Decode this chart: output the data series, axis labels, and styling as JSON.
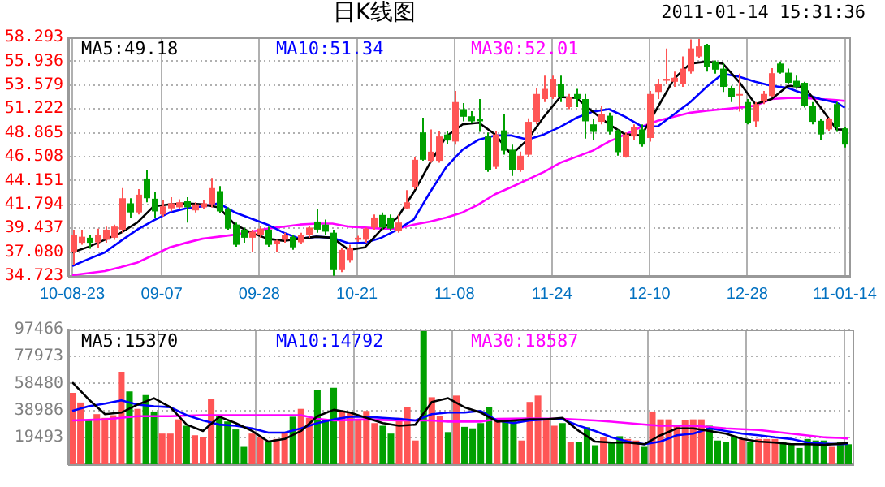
{
  "chart_data": [
    {
      "type": "candlestick",
      "title": "日K线图",
      "annotations": [
        "2011-01-14 15:31:36"
      ],
      "categories": [
        "10-08-23",
        null,
        null,
        null,
        null,
        null,
        null,
        null,
        null,
        null,
        null,
        "09-07",
        null,
        null,
        null,
        null,
        null,
        null,
        null,
        null,
        null,
        null,
        null,
        "09-28",
        null,
        null,
        null,
        null,
        null,
        null,
        null,
        null,
        null,
        null,
        null,
        "10-21",
        null,
        null,
        null,
        null,
        null,
        null,
        null,
        null,
        null,
        null,
        null,
        "11-08",
        null,
        null,
        null,
        null,
        null,
        null,
        null,
        null,
        null,
        null,
        null,
        "11-24",
        null,
        null,
        null,
        null,
        null,
        null,
        null,
        null,
        null,
        null,
        null,
        "12-10",
        null,
        null,
        null,
        null,
        null,
        null,
        null,
        null,
        null,
        null,
        null,
        "12-28",
        null,
        null,
        null,
        null,
        null,
        null,
        null,
        null,
        null,
        null,
        null,
        "11-01-14"
      ],
      "ohlc": [
        [
          37.05,
          39.3,
          35.8,
          38.8
        ],
        [
          38.0,
          39.3,
          37.8,
          38.6
        ],
        [
          38.5,
          38.8,
          37.4,
          38.0
        ],
        [
          38.05,
          39.4,
          37.5,
          38.8
        ],
        [
          38.3,
          39.6,
          38.0,
          39.3
        ],
        [
          38.5,
          39.8,
          38.3,
          39.6
        ],
        [
          39.3,
          43.4,
          39.0,
          42.4
        ],
        [
          41.9,
          42.4,
          40.5,
          41.0
        ],
        [
          41.0,
          43.3,
          40.8,
          42.75
        ],
        [
          44.35,
          45.2,
          42.0,
          42.4
        ],
        [
          42.35,
          43.0,
          40.5,
          41.1
        ],
        [
          40.8,
          42.2,
          40.6,
          41.6
        ],
        [
          41.4,
          42.5,
          41.1,
          41.9
        ],
        [
          41.5,
          42.3,
          41.3,
          42.0
        ],
        [
          42.1,
          42.5,
          40.0,
          41.5
        ],
        [
          41.2,
          42.0,
          41.0,
          41.8
        ],
        [
          41.5,
          42.2,
          41.3,
          41.9
        ],
        [
          41.8,
          44.4,
          41.5,
          43.4
        ],
        [
          43.1,
          43.6,
          40.9,
          41.1
        ],
        [
          41.3,
          41.5,
          39.3,
          39.4
        ],
        [
          39.8,
          40.0,
          37.6,
          37.8
        ],
        [
          39.3,
          39.5,
          38.0,
          38.5
        ],
        [
          38.5,
          39.3,
          37.05,
          39.1
        ],
        [
          38.8,
          39.7,
          38.5,
          39.4
        ],
        [
          39.3,
          39.6,
          37.6,
          37.8
        ],
        [
          37.9,
          38.3,
          37.1,
          38.2
        ],
        [
          38.3,
          39.0,
          38.0,
          38.8
        ],
        [
          38.6,
          38.8,
          37.3,
          37.55
        ],
        [
          38.05,
          39.0,
          37.9,
          38.8
        ],
        [
          38.8,
          39.7,
          38.5,
          39.5
        ],
        [
          40.1,
          41.3,
          39.0,
          39.3
        ],
        [
          39.8,
          40.3,
          38.8,
          39.1
        ],
        [
          39.0,
          39.3,
          34.75,
          35.3
        ],
        [
          35.3,
          37.5,
          35.1,
          37.3
        ],
        [
          36.3,
          37.8,
          36.05,
          37.5
        ],
        [
          38.3,
          38.7,
          38.1,
          38.5
        ],
        [
          38.3,
          39.5,
          38.0,
          39.4
        ],
        [
          39.5,
          40.8,
          39.3,
          40.5
        ],
        [
          40.75,
          41.0,
          39.3,
          39.5
        ],
        [
          40.5,
          40.8,
          39.2,
          39.4
        ],
        [
          39.2,
          40.8,
          39.0,
          40.0
        ],
        [
          41.4,
          43.2,
          41.3,
          42.0
        ],
        [
          43.5,
          46.5,
          43.3,
          46.2
        ],
        [
          48.9,
          50.35,
          46.1,
          46.2
        ],
        [
          46.1,
          49.2,
          45.9,
          47.0
        ],
        [
          46.1,
          49.0,
          45.9,
          48.5
        ],
        [
          48.7,
          49.0,
          47.8,
          48.1
        ],
        [
          48.0,
          53.0,
          47.7,
          51.9
        ],
        [
          51.2,
          51.8,
          50.0,
          50.45
        ],
        [
          50.5,
          51.0,
          49.8,
          50.0
        ],
        [
          50.2,
          52.2,
          48.95,
          50.0
        ],
        [
          48.5,
          48.9,
          45.0,
          45.2
        ],
        [
          45.5,
          49.0,
          45.3,
          48.7
        ],
        [
          49.1,
          50.7,
          46.7,
          47.1
        ],
        [
          47.2,
          47.7,
          44.6,
          45.2
        ],
        [
          45.2,
          47.0,
          45.0,
          46.6
        ],
        [
          46.7,
          50.3,
          46.5,
          49.95
        ],
        [
          49.95,
          53.3,
          49.7,
          52.7
        ],
        [
          52.2,
          54.5,
          51.9,
          53.2
        ],
        [
          52.4,
          54.5,
          52.2,
          54.2
        ],
        [
          53.7,
          54.5,
          51.9,
          52.4
        ],
        [
          51.4,
          52.7,
          51.2,
          52.4
        ],
        [
          52.7,
          53.2,
          51.4,
          52.2
        ],
        [
          52.2,
          52.7,
          48.3,
          50.0
        ],
        [
          49.7,
          50.2,
          48.2,
          48.95
        ],
        [
          49.95,
          51.5,
          49.7,
          50.7
        ],
        [
          50.55,
          50.85,
          48.7,
          48.95
        ],
        [
          49.1,
          49.2,
          46.6,
          46.95
        ],
        [
          46.5,
          48.9,
          46.4,
          48.7
        ],
        [
          48.5,
          49.7,
          48.2,
          49.45
        ],
        [
          49.2,
          49.7,
          47.5,
          47.7
        ],
        [
          48.35,
          53.0,
          48.0,
          52.7
        ],
        [
          52.9,
          54.2,
          52.2,
          53.7
        ],
        [
          54.0,
          57.2,
          53.7,
          54.2
        ],
        [
          53.9,
          54.9,
          53.4,
          54.3
        ],
        [
          53.7,
          56.4,
          53.4,
          55.2
        ],
        [
          54.9,
          58.1,
          54.7,
          57.2
        ],
        [
          56.4,
          58.29,
          56.2,
          57.4
        ],
        [
          57.5,
          57.65,
          54.9,
          55.4
        ],
        [
          55.9,
          56.0,
          54.7,
          55.1
        ],
        [
          55.2,
          55.7,
          52.9,
          53.4
        ],
        [
          53.3,
          53.5,
          51.9,
          52.4
        ],
        [
          52.6,
          54.7,
          50.95,
          52.7
        ],
        [
          51.9,
          52.2,
          49.7,
          49.85
        ],
        [
          50.0,
          51.9,
          49.45,
          51.7
        ],
        [
          52.0,
          53.0,
          51.7,
          52.7
        ],
        [
          52.5,
          55.25,
          52.4,
          54.75
        ],
        [
          55.7,
          55.9,
          54.7,
          54.8
        ],
        [
          54.8,
          55.2,
          53.7,
          53.8
        ],
        [
          54.0,
          54.5,
          53.2,
          53.4
        ],
        [
          53.8,
          53.9,
          51.35,
          51.5
        ],
        [
          51.5,
          51.9,
          49.7,
          49.95
        ],
        [
          50.05,
          50.2,
          48.15,
          48.7
        ],
        [
          49.2,
          50.35,
          49.0,
          50.2
        ],
        [
          51.7,
          51.9,
          48.95,
          49.45
        ],
        [
          49.3,
          49.45,
          47.4,
          47.7
        ]
      ],
      "colors": [
        "#ff5555",
        "#ff5555",
        "#00a000",
        "#ff5555",
        "#ff5555",
        "#ff5555",
        "#ff5555",
        "#00a000",
        "#ff5555",
        "#00a000",
        "#00a000",
        "#ff5555",
        "#ff5555",
        "#ff5555",
        "#00a000",
        "#ff5555",
        "#ff5555",
        "#ff5555",
        "#00a000",
        "#00a000",
        "#00a000",
        "#00a000",
        "#ff5555",
        "#ff5555",
        "#00a000",
        "#ff5555",
        "#ff5555",
        "#00a000",
        "#ff5555",
        "#ff5555",
        "#00a000",
        "#00a000",
        "#00a000",
        "#ff5555",
        "#ff5555",
        "#ff5555",
        "#ff5555",
        "#ff5555",
        "#00a000",
        "#00a000",
        "#ff5555",
        "#ff5555",
        "#ff5555",
        "#00a000",
        "#ff5555",
        "#ff5555",
        "#00a000",
        "#ff5555",
        "#00a000",
        "#00a000",
        "#00a000",
        "#00a000",
        "#ff5555",
        "#00a000",
        "#00a000",
        "#ff5555",
        "#ff5555",
        "#ff5555",
        "#ff5555",
        "#ff5555",
        "#00a000",
        "#ff5555",
        "#00a000",
        "#00a000",
        "#00a000",
        "#ff5555",
        "#00a000",
        "#00a000",
        "#ff5555",
        "#ff5555",
        "#00a000",
        "#ff5555",
        "#ff5555",
        "#ff5555",
        "#ff5555",
        "#ff5555",
        "#ff5555",
        "#ff5555",
        "#00a000",
        "#00a000",
        "#00a000",
        "#00a000",
        "#ff5555",
        "#00a000",
        "#ff5555",
        "#ff5555",
        "#ff5555",
        "#00a000",
        "#00a000",
        "#00a000",
        "#00a000",
        "#00a000",
        "#00a000",
        "#ff5555",
        "#00a000",
        "#00a000"
      ],
      "series": [
        {
          "type": "line",
          "name": "MA5:49.18",
          "color": "#000000",
          "values": [
            37.05,
            null,
            37.6,
            null,
            38.3,
            null,
            39.0,
            null,
            40.0,
            null,
            41.6,
            null,
            41.8,
            null,
            41.9,
            null,
            41.8,
            null,
            41.5,
            null,
            39.8,
            null,
            39.0,
            null,
            38.4,
            null,
            38.2,
            null,
            38.4,
            null,
            38.6,
            null,
            38.5,
            null,
            37.3,
            null,
            37.55,
            null,
            39.3,
            null,
            40.5,
            null,
            43.0,
            null,
            45.9,
            null,
            48.5,
            null,
            49.7,
            null,
            49.85,
            null,
            48.7,
            null,
            46.7,
            null,
            48.2,
            null,
            50.45,
            null,
            52.4,
            null,
            52.3,
            null,
            50.95,
            null,
            49.7,
            null,
            48.7,
            null,
            48.6,
            null,
            51.4,
            null,
            54.2,
            null,
            55.7,
            null,
            55.9,
            null,
            55.7,
            null,
            53.9,
            null,
            51.7,
            null,
            52.2,
            null,
            53.5,
            null,
            53.4,
            null,
            51.4,
            null,
            49.2,
            49.18
          ]
        },
        {
          "type": "line",
          "name": "MA10:51.34",
          "color": "#0000ff",
          "values": [
            35.7,
            null,
            36.4,
            null,
            37.05,
            null,
            38.2,
            null,
            39.3,
            null,
            40.2,
            null,
            41.0,
            null,
            41.4,
            null,
            41.6,
            null,
            41.9,
            null,
            41.0,
            null,
            40.4,
            null,
            39.8,
            null,
            39.0,
            null,
            38.4,
            null,
            38.6,
            null,
            38.5,
            null,
            37.95,
            null,
            38.0,
            null,
            38.5,
            null,
            39.3,
            null,
            40.3,
            null,
            43.0,
            null,
            45.5,
            null,
            47.2,
            null,
            48.2,
            null,
            48.6,
            null,
            48.6,
            null,
            48.2,
            null,
            48.7,
            null,
            49.45,
            null,
            50.35,
            null,
            50.95,
            null,
            51.2,
            null,
            50.45,
            null,
            49.5,
            null,
            49.5,
            null,
            50.7,
            null,
            51.9,
            null,
            53.4,
            null,
            54.7,
            null,
            54.4,
            null,
            53.9,
            null,
            53.5,
            null,
            53.3,
            null,
            52.7,
            null,
            52.2,
            null,
            51.85,
            51.34
          ]
        },
        {
          "type": "line",
          "name": "MA30:52.01",
          "color": "#ff00ff",
          "values": [
            34.8,
            null,
            35.0,
            null,
            35.2,
            null,
            35.6,
            null,
            36.05,
            null,
            36.8,
            null,
            37.55,
            null,
            38.0,
            null,
            38.4,
            null,
            38.6,
            null,
            38.8,
            null,
            39.1,
            null,
            39.4,
            null,
            39.6,
            null,
            39.8,
            null,
            39.9,
            null,
            39.9,
            null,
            39.6,
            null,
            39.5,
            null,
            39.4,
            null,
            39.4,
            null,
            39.8,
            null,
            40.1,
            null,
            40.5,
            null,
            41.0,
            null,
            41.8,
            null,
            42.8,
            null,
            43.5,
            null,
            44.25,
            null,
            45.0,
            null,
            45.9,
            null,
            46.5,
            null,
            47.1,
            null,
            48.0,
            null,
            48.7,
            null,
            49.45,
            null,
            50.05,
            null,
            50.45,
            null,
            50.85,
            null,
            51.05,
            null,
            51.2,
            null,
            51.35,
            null,
            51.55,
            null,
            52.2,
            null,
            52.3,
            null,
            52.3,
            null,
            52.2,
            null,
            52.1,
            52.01
          ]
        }
      ],
      "ylim": [
        34.723,
        58.293
      ],
      "yticks": [
        34.723,
        {
          "value": 37.08,
          "label": "37.080"
        },
        39.437,
        41.794,
        44.151,
        46.508,
        48.865,
        51.222,
        53.579,
        55.936,
        58.293
      ],
      "grid": true,
      "legend": "top"
    },
    {
      "type": "bar",
      "categories": [
        null,
        null,
        null,
        null,
        null,
        null,
        null,
        null,
        null,
        null,
        null,
        null,
        null,
        null,
        null,
        null,
        null,
        null,
        null,
        null,
        null,
        null,
        null,
        null,
        null,
        null,
        null,
        null,
        null,
        null,
        null,
        null,
        null,
        null,
        null,
        null,
        null,
        null,
        null,
        null,
        null,
        null,
        null,
        null,
        null,
        null,
        null,
        null,
        null,
        null,
        null,
        null,
        null,
        null,
        null,
        null,
        null,
        null,
        null,
        null,
        null,
        null,
        null,
        null,
        null,
        null,
        null,
        null,
        null,
        null,
        null,
        null,
        null,
        null,
        null,
        null,
        null,
        null,
        null,
        null,
        null,
        null,
        null,
        null,
        null,
        null,
        null,
        null,
        null,
        null,
        null,
        null,
        null,
        null,
        null,
        null
      ],
      "series": [
        {
          "type": "bar",
          "values": [
            51600,
            44700,
            31700,
            36300,
            33600,
            35500,
            66900,
            52700,
            40100,
            50100,
            38200,
            22200,
            22200,
            32500,
            27900,
            21000,
            19500,
            47000,
            34800,
            31000,
            25200,
            12600,
            22200,
            19500,
            16400,
            18300,
            23300,
            34400,
            40100,
            33600,
            53900,
            32500,
            55400,
            38200,
            37500,
            32900,
            38600,
            29800,
            27900,
            22200,
            33600,
            41300,
            17200,
            97466,
            48500,
            34800,
            23300,
            49700,
            27100,
            26000,
            29800,
            41300,
            32500,
            31000,
            32500,
            17200,
            45100,
            49700,
            31700,
            27900,
            29800,
            16400,
            16400,
            26800,
            13800,
            19500,
            15700,
            20300,
            18300,
            17200,
            12600,
            38200,
            32500,
            32500,
            27900,
            31700,
            32500,
            32500,
            27900,
            17200,
            16400,
            20300,
            18300,
            16400,
            18300,
            18300,
            18300,
            16400,
            14500,
            11800,
            18300,
            17200,
            17200,
            12600,
            16400,
            14500
          ],
          "colors": [
            "#ff5555",
            "#ff5555",
            "#00a000",
            "#ff5555",
            "#ff5555",
            "#ff5555",
            "#ff5555",
            "#00a000",
            "#ff5555",
            "#00a000",
            "#00a000",
            "#ff5555",
            "#ff5555",
            "#ff5555",
            "#00a000",
            "#ff5555",
            "#ff5555",
            "#ff5555",
            "#00a000",
            "#00a000",
            "#00a000",
            "#00a000",
            "#ff5555",
            "#ff5555",
            "#00a000",
            "#ff5555",
            "#ff5555",
            "#00a000",
            "#ff5555",
            "#ff5555",
            "#00a000",
            "#00a000",
            "#00a000",
            "#ff5555",
            "#ff5555",
            "#ff5555",
            "#ff5555",
            "#ff5555",
            "#00a000",
            "#00a000",
            "#ff5555",
            "#ff5555",
            "#ff5555",
            "#00a000",
            "#ff5555",
            "#ff5555",
            "#00a000",
            "#ff5555",
            "#00a000",
            "#00a000",
            "#00a000",
            "#00a000",
            "#ff5555",
            "#00a000",
            "#00a000",
            "#ff5555",
            "#ff5555",
            "#ff5555",
            "#ff5555",
            "#ff5555",
            "#00a000",
            "#ff5555",
            "#00a000",
            "#00a000",
            "#00a000",
            "#ff5555",
            "#00a000",
            "#00a000",
            "#ff5555",
            "#ff5555",
            "#00a000",
            "#ff5555",
            "#ff5555",
            "#ff5555",
            "#ff5555",
            "#ff5555",
            "#ff5555",
            "#ff5555",
            "#00a000",
            "#00a000",
            "#00a000",
            "#00a000",
            "#ff5555",
            "#00a000",
            "#ff5555",
            "#ff5555",
            "#ff5555",
            "#00a000",
            "#00a000",
            "#00a000",
            "#00a000",
            "#00a000",
            "#00a000",
            "#ff5555",
            "#00a000",
            "#00a000"
          ]
        },
        {
          "type": "line",
          "name": "MA5:15370",
          "color": "#000000",
          "values": [
            59200,
            null,
            47000,
            null,
            36300,
            null,
            37400,
            null,
            43200,
            null,
            47800,
            null,
            41300,
            null,
            28700,
            null,
            24100,
            null,
            34400,
            null,
            29800,
            null,
            24100,
            null,
            16400,
            null,
            18300,
            null,
            24100,
            null,
            34800,
            null,
            39400,
            null,
            37400,
            null,
            33600,
            null,
            29800,
            null,
            27900,
            null,
            28700,
            null,
            45100,
            null,
            47800,
            null,
            41300,
            null,
            37400,
            null,
            30900,
            null,
            31700,
            null,
            32500,
            null,
            32500,
            null,
            33600,
            null,
            24100,
            null,
            16400,
            null,
            15700,
            null,
            15700,
            null,
            14500,
            null,
            21000,
            null,
            26000,
            null,
            26000,
            null,
            24100,
            null,
            22200,
            null,
            18300,
            null,
            16400,
            null,
            15700,
            null,
            14500,
            null,
            14500,
            null,
            14100,
            null,
            14900,
            15370
          ]
        },
        {
          "type": "line",
          "name": "MA10:14792",
          "color": "#0000ff",
          "values": [
            38600,
            null,
            42000,
            null,
            43900,
            null,
            46200,
            null,
            43200,
            null,
            42000,
            null,
            41300,
            null,
            35500,
            null,
            31700,
            null,
            28700,
            null,
            27900,
            null,
            26000,
            null,
            22900,
            null,
            22900,
            null,
            26000,
            null,
            29800,
            null,
            32500,
            null,
            34400,
            null,
            34400,
            null,
            33600,
            null,
            32900,
            null,
            31700,
            null,
            36300,
            null,
            37400,
            null,
            37400,
            null,
            38600,
            null,
            31700,
            null,
            29800,
            null,
            31700,
            null,
            32500,
            null,
            32500,
            null,
            27900,
            null,
            24100,
            null,
            19500,
            null,
            16400,
            null,
            14500,
            null,
            16400,
            null,
            21000,
            null,
            22200,
            null,
            26000,
            null,
            24100,
            null,
            22200,
            null,
            21000,
            null,
            19500,
            null,
            18300,
            null,
            15700,
            null,
            14900,
            null,
            14500,
            14792
          ]
        },
        {
          "type": "line",
          "name": "MA30:18587",
          "color": "#ff00ff",
          "values": [
            31700,
            null,
            32100,
            null,
            32500,
            null,
            33600,
            null,
            34800,
            null,
            34800,
            null,
            34800,
            null,
            35200,
            null,
            35500,
            null,
            35500,
            null,
            35500,
            null,
            35500,
            null,
            35500,
            null,
            35500,
            null,
            35500,
            null,
            32900,
            null,
            31700,
            null,
            32100,
            null,
            32500,
            null,
            32100,
            null,
            31700,
            null,
            31700,
            null,
            31700,
            null,
            30900,
            null,
            30900,
            null,
            30900,
            null,
            32900,
            null,
            33000,
            null,
            33200,
            null,
            33000,
            null,
            32900,
            null,
            32300,
            null,
            31700,
            null,
            30800,
            null,
            29800,
            null,
            28800,
            null,
            27900,
            null,
            27900,
            null,
            27900,
            null,
            27000,
            null,
            26000,
            null,
            25400,
            null,
            24800,
            null,
            23500,
            null,
            22200,
            null,
            20800,
            null,
            19500,
            null,
            19100,
            18587
          ]
        }
      ],
      "ylim": [
        0,
        97466
      ],
      "yticks": [
        19493,
        38986,
        58480,
        77973,
        97466
      ],
      "grid": true,
      "legend": "top",
      "tick_labels": "y"
    }
  ]
}
